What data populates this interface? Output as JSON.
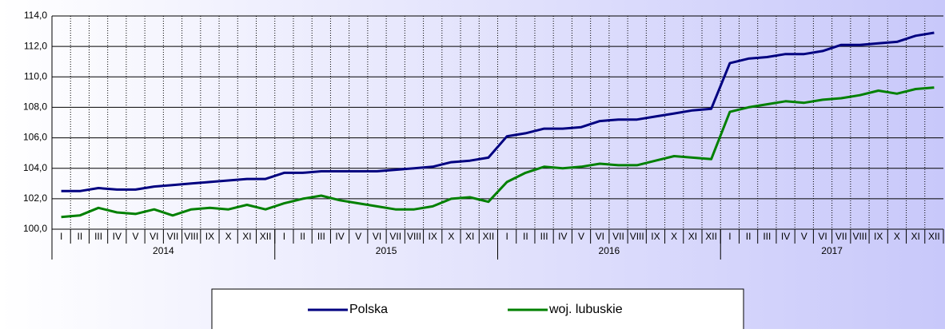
{
  "chart_data": {
    "type": "line",
    "categories": [
      "I",
      "II",
      "III",
      "IV",
      "V",
      "VI",
      "VII",
      "VIII",
      "IX",
      "X",
      "XI",
      "XII",
      "I",
      "II",
      "III",
      "IV",
      "V",
      "VI",
      "VII",
      "VIII",
      "IX",
      "X",
      "XI",
      "XII",
      "I",
      "II",
      "III",
      "IV",
      "V",
      "VI",
      "VII",
      "VIII",
      "IX",
      "X",
      "XI",
      "XII",
      "I",
      "II",
      "III",
      "IV",
      "V",
      "VI",
      "VII",
      "VIII",
      "IX",
      "X",
      "XI",
      "XII"
    ],
    "category_groups": [
      "2014",
      "2015",
      "2016",
      "2017"
    ],
    "series": [
      {
        "name": "Polska",
        "color": "#000080",
        "values": [
          102.5,
          102.5,
          102.7,
          102.6,
          102.6,
          102.8,
          102.9,
          103.0,
          103.1,
          103.2,
          103.3,
          103.3,
          103.7,
          103.7,
          103.8,
          103.8,
          103.8,
          103.8,
          103.9,
          104.0,
          104.1,
          104.4,
          104.5,
          104.7,
          106.1,
          106.3,
          106.6,
          106.6,
          106.7,
          107.1,
          107.2,
          107.2,
          107.4,
          107.6,
          107.8,
          107.9,
          110.9,
          111.2,
          111.3,
          111.5,
          111.5,
          111.7,
          112.1,
          112.1,
          112.2,
          112.3,
          112.7,
          112.9
        ]
      },
      {
        "name": "woj. lubuskie",
        "color": "#008000",
        "values": [
          100.8,
          100.9,
          101.4,
          101.1,
          101.0,
          101.3,
          100.9,
          101.3,
          101.4,
          101.3,
          101.6,
          101.3,
          101.7,
          102.0,
          102.2,
          101.9,
          101.7,
          101.5,
          101.3,
          101.3,
          101.5,
          102.0,
          102.1,
          101.8,
          103.1,
          103.7,
          104.1,
          104.0,
          104.1,
          104.3,
          104.2,
          104.2,
          104.5,
          104.8,
          104.7,
          104.6,
          107.7,
          108.0,
          108.2,
          108.4,
          108.3,
          108.5,
          108.6,
          108.8,
          109.1,
          108.9,
          109.2,
          109.3
        ]
      }
    ],
    "ylim": [
      100,
      114
    ],
    "yticks": [
      {
        "value": 100,
        "label": "100,0"
      },
      {
        "value": 102,
        "label": "102,0"
      },
      {
        "value": 104,
        "label": "104,0"
      },
      {
        "value": 106,
        "label": "106,0"
      },
      {
        "value": 108,
        "label": "108,0"
      },
      {
        "value": 110,
        "label": "110,0"
      },
      {
        "value": 112,
        "label": "112,0"
      },
      {
        "value": 114,
        "label": "114,0"
      }
    ],
    "grid": true
  }
}
